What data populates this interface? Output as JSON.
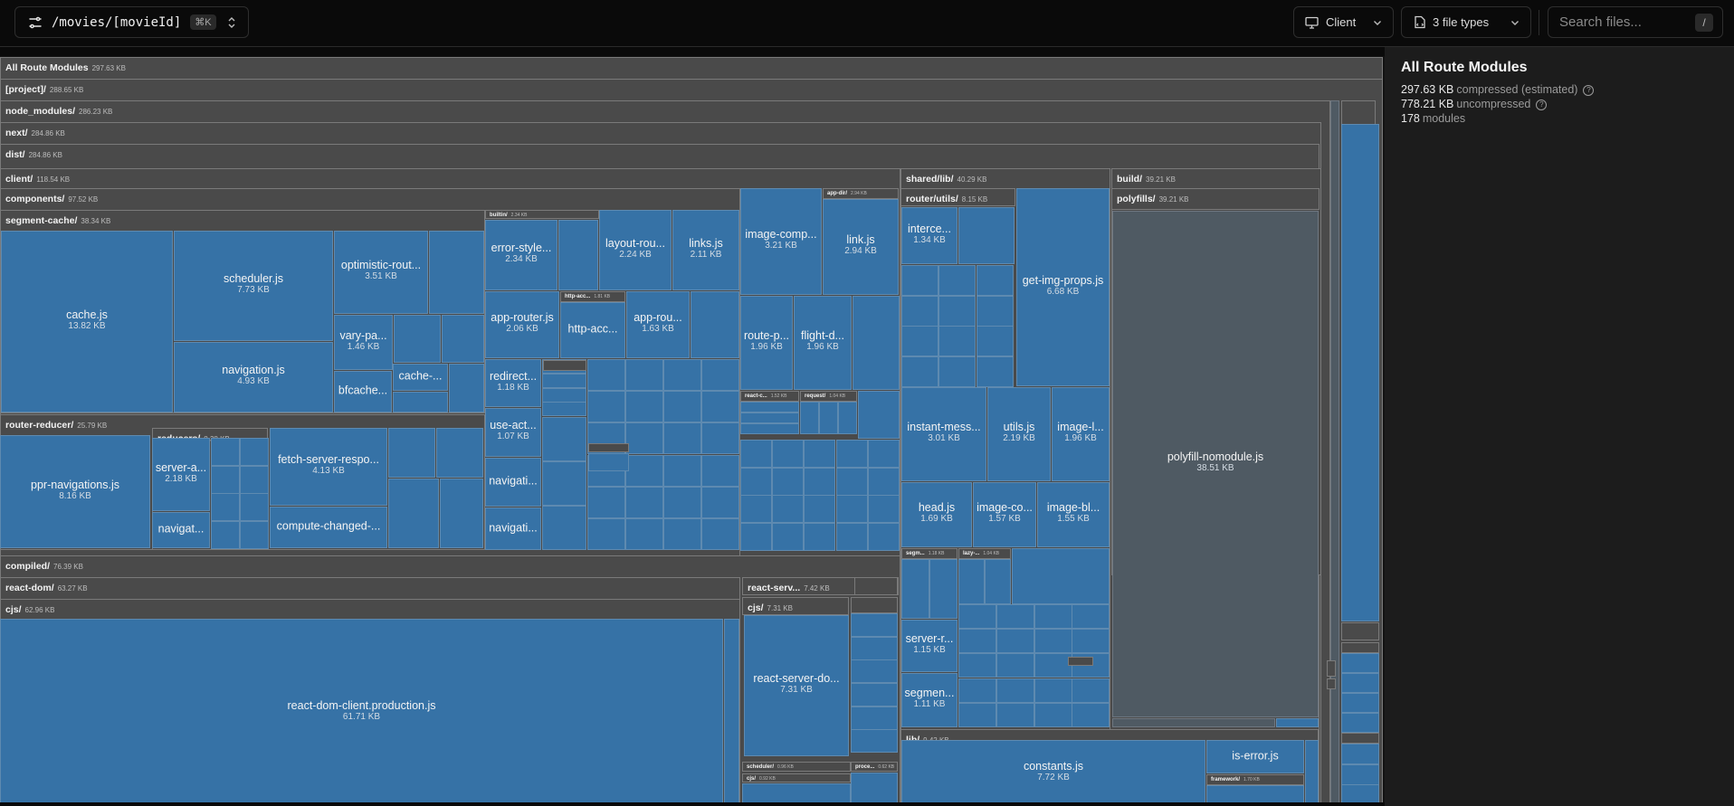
{
  "header": {
    "route": "/movies/[movieId]",
    "route_shortcut": "⌘K",
    "environment": "Client",
    "file_types": "3 file types",
    "search_placeholder": "Search files...",
    "search_shortcut": "/"
  },
  "sidebar": {
    "title": "All Route Modules",
    "compressed_value": "297.63 KB",
    "compressed_label": "compressed (estimated)",
    "uncompressed_value": "778.21 KB",
    "uncompressed_label": "uncompressed",
    "modules_count": "178",
    "modules_label": "modules"
  },
  "colors": {
    "module": "#3672a6",
    "directory": "#4a4a4a",
    "polyfill": "#4f5a63",
    "sidebar_bg": "#1c1c1c"
  },
  "treemap": {
    "directories": [
      {
        "name": "All Route Modules",
        "size": "297.63 KB"
      },
      {
        "name": "[project]/",
        "size": "288.65 KB"
      },
      {
        "name": "node_modules/",
        "size": "286.23 KB"
      },
      {
        "name": "next/",
        "size": "284.86 KB"
      },
      {
        "name": "dist/",
        "size": "284.86 KB"
      },
      {
        "name": "client/",
        "size": "118.54 KB"
      },
      {
        "name": "components/",
        "size": "97.52 KB"
      },
      {
        "name": "segment-cache/",
        "size": "38.34 KB"
      },
      {
        "name": "router-reducer/",
        "size": "25.79 KB"
      },
      {
        "name": "reducers/",
        "size": "8.38 KB"
      },
      {
        "name": "builtin/",
        "size": "2.34 KB"
      },
      {
        "name": "http-acc...",
        "size": "1.81 KB"
      },
      {
        "name": "app-dir/",
        "size": "2.94 KB"
      },
      {
        "name": "shared/lib/",
        "size": "40.29 KB"
      },
      {
        "name": "router/utils/",
        "size": "8.15 KB"
      },
      {
        "name": "build/",
        "size": "39.21 KB"
      },
      {
        "name": "polyfills/",
        "size": "39.21 KB"
      },
      {
        "name": "compiled/",
        "size": "76.39 KB"
      },
      {
        "name": "react-dom/",
        "size": "63.27 KB"
      },
      {
        "name": "cjs/",
        "size": "62.96 KB"
      },
      {
        "name": "react-serv...",
        "size": "7.42 KB"
      },
      {
        "name": "cjs/",
        "size": "7.31 KB"
      },
      {
        "name": "lib/",
        "size": "9.42 KB"
      },
      {
        "name": "framework/",
        "size": "1.70 KB"
      },
      {
        "name": "react-c...",
        "size": "1.52 KB"
      },
      {
        "name": "request/",
        "size": "1.04 KB"
      },
      {
        "name": "lib/",
        "size": "0.91 KB"
      },
      {
        "name": "segm...",
        "size": "1.18 KB"
      },
      {
        "name": "lazy-...",
        "size": "1.04 KB"
      },
      {
        "name": "scheduler/",
        "size": "0.96 KB"
      },
      {
        "name": "cjs/",
        "size": "0.92 KB"
      },
      {
        "name": "proce...",
        "size": "0.62 KB"
      }
    ],
    "files": [
      {
        "name": "cache.js",
        "size": "13.82 KB"
      },
      {
        "name": "scheduler.js",
        "size": "7.73 KB"
      },
      {
        "name": "navigation.js",
        "size": "4.93 KB"
      },
      {
        "name": "optimistic-rout...",
        "size": "3.51 KB"
      },
      {
        "name": "vary-pa...",
        "size": "1.46 KB"
      },
      {
        "name": "bfcache...",
        "size": ""
      },
      {
        "name": "cache-...",
        "size": ""
      },
      {
        "name": "error-style...",
        "size": "2.34 KB"
      },
      {
        "name": "layout-rou...",
        "size": "2.24 KB"
      },
      {
        "name": "links.js",
        "size": "2.11 KB"
      },
      {
        "name": "image-comp...",
        "size": "3.21 KB"
      },
      {
        "name": "link.js",
        "size": "2.94 KB"
      },
      {
        "name": "app-router.js",
        "size": "2.06 KB"
      },
      {
        "name": "http-acc...",
        "size": ""
      },
      {
        "name": "app-rou...",
        "size": "1.63 KB"
      },
      {
        "name": "route-p...",
        "size": "1.96 KB"
      },
      {
        "name": "flight-d...",
        "size": "1.96 KB"
      },
      {
        "name": "redirect...",
        "size": "1.18 KB"
      },
      {
        "name": "use-act...",
        "size": "1.07 KB"
      },
      {
        "name": "navigati...",
        "size": ""
      },
      {
        "name": "navigati...",
        "size": ""
      },
      {
        "name": "ppr-navigations.js",
        "size": "8.16 KB"
      },
      {
        "name": "server-a...",
        "size": "2.18 KB"
      },
      {
        "name": "navigat...",
        "size": ""
      },
      {
        "name": "fetch-server-respo...",
        "size": "4.13 KB"
      },
      {
        "name": "compute-changed-...",
        "size": ""
      },
      {
        "name": "interce...",
        "size": "1.34 KB"
      },
      {
        "name": "get-img-props.js",
        "size": "6.68 KB"
      },
      {
        "name": "instant-mess...",
        "size": "3.01 KB"
      },
      {
        "name": "utils.js",
        "size": "2.19 KB"
      },
      {
        "name": "image-l...",
        "size": "1.96 KB"
      },
      {
        "name": "head.js",
        "size": "1.69 KB"
      },
      {
        "name": "image-co...",
        "size": "1.57 KB"
      },
      {
        "name": "image-bl...",
        "size": "1.55 KB"
      },
      {
        "name": "server-r...",
        "size": "1.15 KB"
      },
      {
        "name": "segmen...",
        "size": "1.11 KB"
      },
      {
        "name": "polyfill-nomodule.js",
        "size": "38.51 KB"
      },
      {
        "name": "constants.js",
        "size": "7.72 KB"
      },
      {
        "name": "is-error.js",
        "size": ""
      },
      {
        "name": "react-dom-client.production.js",
        "size": "61.71 KB"
      },
      {
        "name": "react-server-do...",
        "size": "7.31 KB"
      }
    ]
  }
}
